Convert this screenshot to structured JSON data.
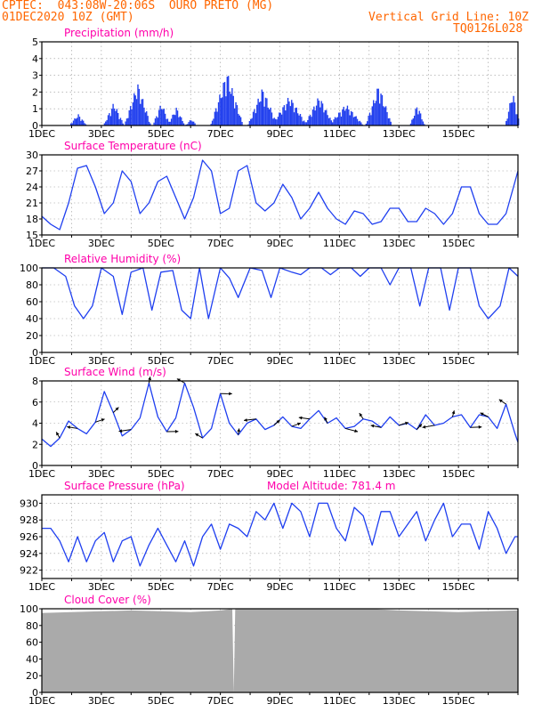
{
  "header": {
    "line1": "CPTEC:  043:08W-20:06S  OURO PRETO (MG)",
    "line2": "01DEC2020 10Z (GMT)",
    "grid_note": "Vertical Grid Line: 10Z",
    "code": "TQ0126L028",
    "color": "#ff6600"
  },
  "colors": {
    "title": "#ff00aa",
    "series": "#1f3ff0",
    "bars": "#2240ee",
    "cloud": "#aaaaaa",
    "grid": "#999999"
  },
  "days": [
    "1DEC",
    "3DEC",
    "5DEC",
    "7DEC",
    "9DEC",
    "11DEC",
    "13DEC",
    "15DEC"
  ],
  "panels": {
    "precip": {
      "title": "Precipitation (mm/h)",
      "yticks": [
        0,
        1,
        2,
        3,
        4,
        5
      ]
    },
    "temp": {
      "title": "Surface Temperature (nC)",
      "yticks": [
        15,
        18,
        21,
        24,
        27,
        30
      ]
    },
    "rh": {
      "title": "Relative Humidity (%)",
      "yticks": [
        0,
        20,
        40,
        60,
        80,
        100
      ]
    },
    "wind": {
      "title": "Surface Wind (m/s)",
      "yticks": [
        0,
        2,
        4,
        6,
        8
      ]
    },
    "pres": {
      "title": "Surface Pressure (hPa)",
      "altitude": "Model Altitude: 781.4 m",
      "yticks": [
        922,
        924,
        926,
        928,
        930
      ]
    },
    "cloud": {
      "title": "Cloud Cover (%)",
      "yticks": [
        0,
        20,
        40,
        60,
        80,
        100
      ]
    }
  },
  "chart_data": [
    {
      "type": "bar",
      "title": "Precipitation (mm/h)",
      "x_unit": "days since 01DEC2020 10Z",
      "ylim": [
        0,
        5
      ],
      "events": [
        {
          "day": 1.2,
          "peak": 0.7,
          "width": 0.3
        },
        {
          "day": 2.4,
          "peak": 1.4,
          "width": 0.35
        },
        {
          "day": 3.2,
          "peak": 2.6,
          "width": 0.45
        },
        {
          "day": 4.0,
          "peak": 1.4,
          "width": 0.3
        },
        {
          "day": 4.5,
          "peak": 1.1,
          "width": 0.3
        },
        {
          "day": 5.0,
          "peak": 0.4,
          "width": 0.2
        },
        {
          "day": 6.2,
          "peak": 3.3,
          "width": 0.55
        },
        {
          "day": 7.4,
          "peak": 2.3,
          "width": 0.5
        },
        {
          "day": 8.3,
          "peak": 1.8,
          "width": 0.6
        },
        {
          "day": 9.3,
          "peak": 1.8,
          "width": 0.5
        },
        {
          "day": 10.2,
          "peak": 1.3,
          "width": 0.6
        },
        {
          "day": 11.3,
          "peak": 2.5,
          "width": 0.45
        },
        {
          "day": 12.6,
          "peak": 1.3,
          "width": 0.25
        },
        {
          "day": 15.8,
          "peak": 2.1,
          "width": 0.25
        }
      ]
    },
    {
      "type": "line",
      "title": "Surface Temperature (nC)",
      "ylim": [
        15,
        30
      ],
      "x": [
        0,
        0.3,
        0.6,
        0.9,
        1.2,
        1.5,
        1.8,
        2.1,
        2.4,
        2.7,
        3.0,
        3.3,
        3.6,
        3.9,
        4.2,
        4.5,
        4.8,
        5.1,
        5.4,
        5.7,
        6.0,
        6.3,
        6.6,
        6.9,
        7.2,
        7.5,
        7.8,
        8.1,
        8.4,
        8.7,
        9.0,
        9.3,
        9.6,
        9.9,
        10.2,
        10.5,
        10.8,
        11.1,
        11.4,
        11.7,
        12.0,
        12.3,
        12.6,
        12.9,
        13.2,
        13.5,
        13.8,
        14.1,
        14.4,
        14.7,
        15.0,
        15.3,
        15.6,
        15.9,
        16.0
      ],
      "y": [
        18.5,
        17,
        16,
        21,
        27.5,
        28,
        24,
        19,
        21,
        27,
        25,
        19,
        21,
        25,
        26,
        22,
        18,
        22,
        29,
        27,
        19,
        20,
        27,
        28,
        21,
        19.5,
        21,
        24.5,
        22,
        18,
        20,
        23,
        20,
        18,
        17,
        19.5,
        19,
        17,
        17.5,
        20,
        20,
        17.5,
        17.5,
        20,
        19,
        17,
        19,
        24,
        24,
        19,
        17,
        17,
        19,
        25,
        27
      ]
    },
    {
      "type": "line",
      "title": "Relative Humidity (%)",
      "ylim": [
        0,
        100
      ],
      "x": [
        0,
        0.4,
        0.8,
        1.1,
        1.4,
        1.7,
        2.0,
        2.4,
        2.7,
        3.0,
        3.4,
        3.7,
        4.0,
        4.4,
        4.7,
        5.0,
        5.3,
        5.6,
        6.0,
        6.3,
        6.6,
        7.0,
        7.4,
        7.7,
        8.0,
        8.4,
        8.7,
        9.0,
        9.4,
        9.7,
        10.0,
        10.4,
        10.7,
        11.0,
        11.4,
        11.7,
        12.0,
        12.4,
        12.7,
        13.0,
        13.4,
        13.7,
        14.0,
        14.4,
        14.7,
        15.0,
        15.4,
        15.7,
        16.0
      ],
      "y": [
        100,
        100,
        90,
        55,
        40,
        55,
        100,
        90,
        45,
        95,
        100,
        50,
        95,
        97,
        50,
        40,
        100,
        40,
        100,
        88,
        65,
        100,
        97,
        65,
        100,
        95,
        92,
        100,
        100,
        92,
        100,
        100,
        90,
        100,
        100,
        80,
        100,
        100,
        55,
        100,
        100,
        50,
        100,
        100,
        55,
        40,
        55,
        100,
        90
      ]
    },
    {
      "type": "line",
      "title": "Surface Wind (m/s)",
      "ylim": [
        0,
        8
      ],
      "x": [
        0,
        0.3,
        0.6,
        0.9,
        1.2,
        1.5,
        1.8,
        2.1,
        2.4,
        2.7,
        3.0,
        3.3,
        3.6,
        3.9,
        4.2,
        4.5,
        4.8,
        5.1,
        5.4,
        5.7,
        6.0,
        6.3,
        6.6,
        6.9,
        7.2,
        7.5,
        7.8,
        8.1,
        8.4,
        8.7,
        9.0,
        9.3,
        9.6,
        9.9,
        10.2,
        10.5,
        10.8,
        11.1,
        11.4,
        11.7,
        12.0,
        12.3,
        12.6,
        12.9,
        13.2,
        13.5,
        13.8,
        14.1,
        14.4,
        14.7,
        15.0,
        15.3,
        15.6,
        15.9,
        16.0
      ],
      "y": [
        2.5,
        1.8,
        2.6,
        4.2,
        3.5,
        3.0,
        4.1,
        7.0,
        5.0,
        2.8,
        3.4,
        4.5,
        7.8,
        4.6,
        3.2,
        4.5,
        7.8,
        5.5,
        2.6,
        3.5,
        6.8,
        4.0,
        2.9,
        4.0,
        4.4,
        3.4,
        3.8,
        4.6,
        3.7,
        3.5,
        4.4,
        5.2,
        4.0,
        4.5,
        3.5,
        3.7,
        4.4,
        4.2,
        3.6,
        4.6,
        3.8,
        4.0,
        3.4,
        4.8,
        3.8,
        4.0,
        4.6,
        4.8,
        3.6,
        4.8,
        4.6,
        3.5,
        5.8,
        3.0,
        2.2
      ]
    },
    {
      "type": "line",
      "title": "Surface Pressure (hPa)",
      "ylim": [
        921,
        931
      ],
      "x": [
        0,
        0.3,
        0.6,
        0.9,
        1.2,
        1.5,
        1.8,
        2.1,
        2.4,
        2.7,
        3.0,
        3.3,
        3.6,
        3.9,
        4.2,
        4.5,
        4.8,
        5.1,
        5.4,
        5.7,
        6.0,
        6.3,
        6.6,
        6.9,
        7.2,
        7.5,
        7.8,
        8.1,
        8.4,
        8.7,
        9.0,
        9.3,
        9.6,
        9.9,
        10.2,
        10.5,
        10.8,
        11.1,
        11.4,
        11.7,
        12.0,
        12.3,
        12.6,
        12.9,
        13.2,
        13.5,
        13.8,
        14.1,
        14.4,
        14.7,
        15.0,
        15.3,
        15.6,
        15.9,
        16.0
      ],
      "y": [
        927,
        927,
        925.5,
        923,
        926,
        923,
        925.5,
        926.5,
        923,
        925.5,
        926,
        922.5,
        925,
        927,
        925,
        923,
        925.5,
        922.5,
        926,
        927.5,
        924.5,
        927.5,
        927,
        926,
        929,
        928,
        930,
        927,
        930,
        929,
        926,
        930,
        930,
        927,
        925.5,
        929.5,
        928.5,
        925,
        929,
        929,
        926,
        927.5,
        929,
        925.5,
        928,
        930,
        926,
        927.5,
        927.5,
        924.5,
        929,
        927,
        924,
        926,
        926
      ]
    },
    {
      "type": "area",
      "title": "Cloud Cover (%)",
      "ylim": [
        0,
        100
      ],
      "x": [
        0,
        1,
        2,
        3,
        4,
        5,
        6,
        6.4,
        6.45,
        6.5,
        7,
        8,
        9,
        10,
        11,
        12,
        13,
        14,
        15,
        16
      ],
      "y": [
        95,
        96,
        97,
        98,
        97,
        96,
        98,
        100,
        0,
        100,
        100,
        100,
        100,
        100,
        100,
        98,
        97,
        96,
        97,
        98
      ]
    }
  ]
}
